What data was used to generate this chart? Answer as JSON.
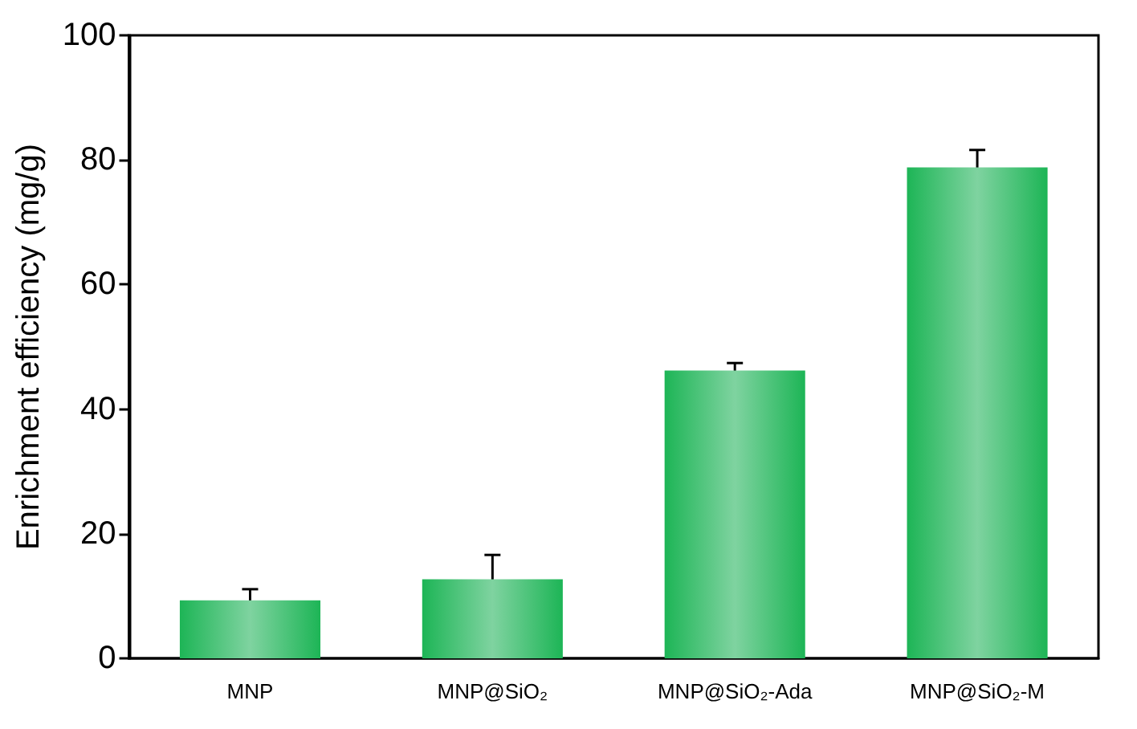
{
  "chart_data": {
    "type": "bar",
    "ylabel": "Enrichment efficiency (mg/g)",
    "categories": [
      "MNP",
      "MNP@SiO₂",
      "MNP@SiO₂-Ada",
      "MNP@SiO₂-M"
    ],
    "values": [
      9.3,
      12.7,
      46.2,
      78.8
    ],
    "errors": [
      1.8,
      3.9,
      1.2,
      2.8
    ],
    "color": "#1db556",
    "ylim": [
      0,
      100
    ],
    "yticks": [
      0,
      20,
      40,
      60,
      80,
      100
    ],
    "grid": false
  }
}
